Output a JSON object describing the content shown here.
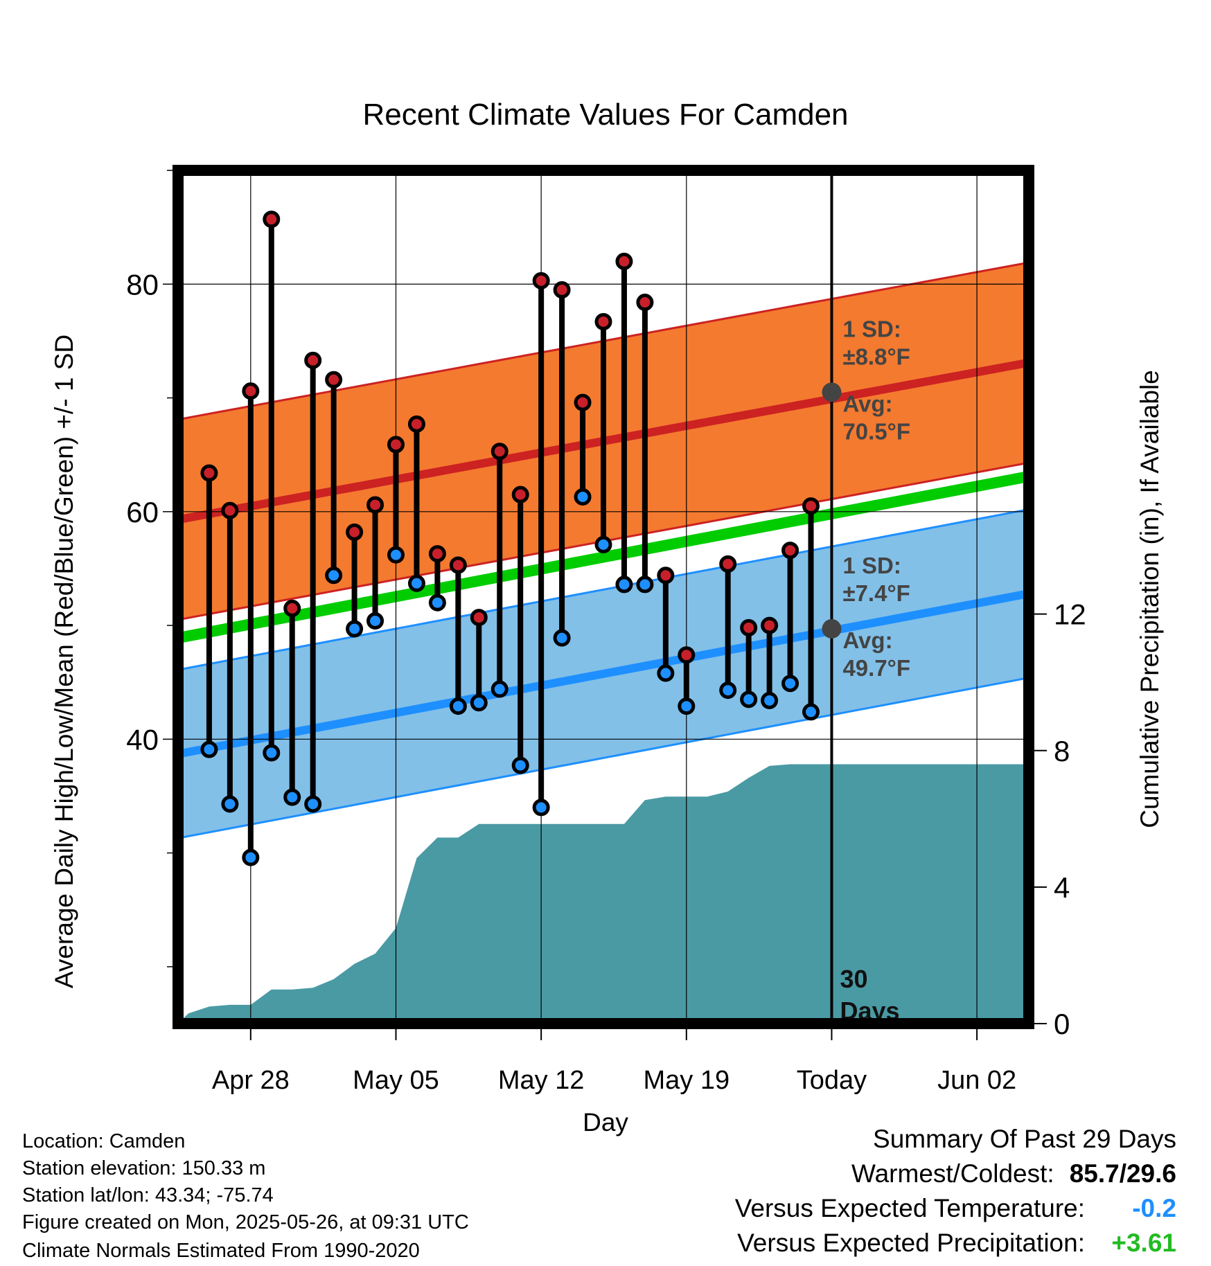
{
  "chart_data": {
    "type": "line",
    "title": "Recent Climate Values For Camden",
    "xlabel": "Day",
    "ylabel": "Average Daily High/Low/Mean (Red/Blue/Green) +/- 1 SD",
    "y2label": "Cumulative Precipitation (in), If Available",
    "x_tick_labels": [
      "Apr 28",
      "May 05",
      "May 12",
      "May 19",
      "Today",
      "Jun 02"
    ],
    "x_range_days_from_today": [
      -31.5,
      9.5
    ],
    "ylim": [
      15,
      90
    ],
    "yticks": [
      40,
      60,
      80
    ],
    "y2lim": [
      0,
      25
    ],
    "y2ticks": [
      0,
      4,
      8,
      12
    ],
    "today_marker_label": "30\nDays",
    "normals": {
      "high_avg": [
        59.3,
        73.1
      ],
      "high_sd": 8.8,
      "low_avg": [
        38.7,
        52.8
      ],
      "low_sd": 7.4,
      "mean_avg": [
        48.9,
        63.1
      ],
      "today_high_annotation": {
        "sd_label": "1 SD:",
        "sd_value": "±8.8°F",
        "avg_label": "Avg:",
        "avg_value": "70.5°F",
        "avg": 70.5
      },
      "today_low_annotation": {
        "sd_label": "1 SD:",
        "sd_value": "±7.4°F",
        "avg_label": "Avg:",
        "avg_value": "49.7°F",
        "avg": 49.7
      }
    },
    "series": [
      {
        "name": "High",
        "color": "#c8202a",
        "x": [
          -30,
          -29,
          -28,
          -27,
          -26,
          -25,
          -24,
          -23,
          -22,
          -21,
          -20,
          -19,
          -18,
          -17,
          -16,
          -15,
          -14,
          -13,
          -12,
          -11,
          -10,
          -9,
          -8,
          -7,
          -6,
          -5,
          -4,
          -3,
          -2,
          -1
        ],
        "values": [
          63.4,
          60.1,
          70.6,
          85.7,
          51.5,
          73.3,
          71.6,
          58.2,
          60.6,
          65.9,
          67.7,
          56.3,
          55.3,
          50.7,
          65.3,
          61.5,
          80.3,
          79.5,
          69.6,
          76.7,
          82.0,
          78.4,
          54.4,
          47.4,
          null,
          55.4,
          49.8,
          50.0,
          56.6,
          60.5
        ]
      },
      {
        "name": "Low",
        "color": "#1e8fff",
        "x": [
          -30,
          -29,
          -28,
          -27,
          -26,
          -25,
          -24,
          -23,
          -22,
          -21,
          -20,
          -19,
          -18,
          -17,
          -16,
          -15,
          -14,
          -13,
          -12,
          -11,
          -10,
          -9,
          -8,
          -7,
          -6,
          -5,
          -4,
          -3,
          -2,
          -1
        ],
        "values": [
          39.1,
          34.3,
          29.6,
          38.8,
          34.9,
          34.3,
          54.4,
          49.7,
          50.4,
          56.2,
          53.7,
          52.0,
          42.9,
          43.2,
          44.4,
          37.7,
          34.0,
          48.9,
          61.3,
          57.1,
          53.6,
          53.6,
          45.8,
          42.9,
          null,
          44.3,
          43.5,
          43.4,
          44.9,
          42.4
        ]
      },
      {
        "name": "Precipitation",
        "color": "#4a9aa4",
        "x": [
          -31.5,
          -31,
          -30,
          -29,
          -28,
          -27,
          -26,
          -25,
          -24,
          -23,
          -22,
          -21,
          -20,
          -19,
          -18,
          -17,
          -16,
          -15,
          -14,
          -13,
          -12,
          -11,
          -10,
          -9,
          -8,
          -7,
          -6,
          -5,
          -4,
          -3,
          -2,
          -1,
          0,
          9.5
        ],
        "values": [
          0.0,
          0.3,
          0.5,
          0.55,
          0.55,
          1.0,
          1.0,
          1.05,
          1.3,
          1.75,
          2.05,
          2.8,
          4.85,
          5.45,
          5.45,
          5.85,
          5.85,
          5.85,
          5.85,
          5.85,
          5.85,
          5.85,
          5.85,
          6.55,
          6.65,
          6.65,
          6.65,
          6.8,
          7.2,
          7.55,
          7.6,
          7.6,
          7.6,
          7.6
        ]
      }
    ]
  },
  "info": {
    "location": "Location: Camden",
    "elevation": "Station elevation: 150.33 m",
    "latlon": "Station lat/lon: 43.34; -75.74",
    "created": "Figure created on Mon, 2025-05-26, at 09:31 UTC",
    "normals": "Climate Normals Estimated From 1990-2020"
  },
  "summary": {
    "title": "Summary Of Past 29 Days",
    "warm_cold_label": "Warmest/Coldest:",
    "warm_cold_value": "85.7/29.6",
    "temp_label": "Versus Expected Temperature:",
    "temp_value": "-0.2",
    "temp_color": "#1e8fff",
    "precip_label": "Versus Expected Precipitation:",
    "precip_value": "+3.61",
    "precip_color": "#22bb22"
  },
  "colors": {
    "high_band": "#f47a2f",
    "high_line": "#cc2222",
    "low_band": "#82c0e8",
    "low_line": "#1e8fff",
    "mean_line": "#00cc00",
    "precip": "#4a9aa4",
    "today_dot": "#444444"
  }
}
